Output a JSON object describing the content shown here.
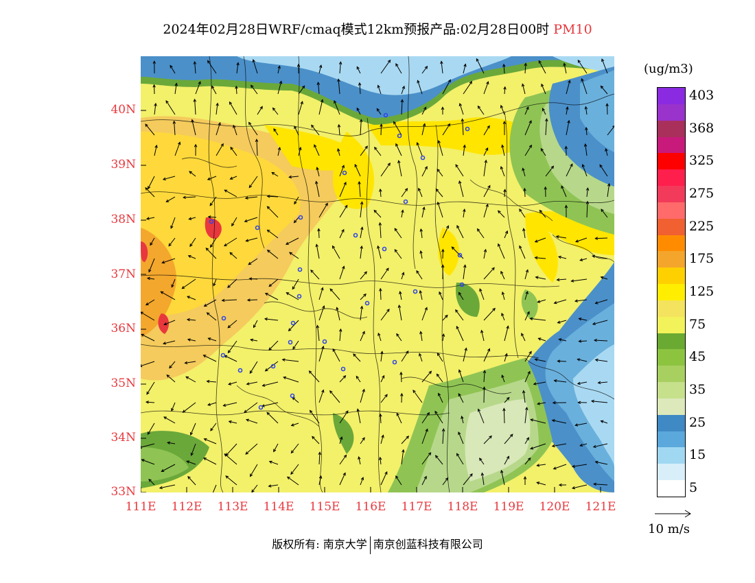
{
  "title": {
    "main": "2024年02月28日WRF/cmaq模式12km预报产品:02月28日00时",
    "pollutant": "PM10"
  },
  "map": {
    "lat_labels": [
      "40N",
      "39N",
      "38N",
      "37N",
      "36N",
      "35N",
      "34N",
      "33N"
    ],
    "lon_labels": [
      "111E",
      "112E",
      "113E",
      "114E",
      "115E",
      "116E",
      "117E",
      "118E",
      "119E",
      "120E",
      "121E"
    ],
    "colors": {
      "yellow_light": "#f3f06a",
      "yellow": "#ffe500",
      "orange_light": "#f4cb5c",
      "orange": "#f3a72d",
      "red": "#e8383d",
      "green_dark": "#6aa83a",
      "green": "#8fc454",
      "green_light": "#b7d88a",
      "green_pale": "#d8e8b8",
      "blue_dark": "#4b90c9",
      "blue": "#6ab0dc",
      "blue_light": "#a9d9f2",
      "station": "#2f46e6"
    }
  },
  "colorbar": {
    "unit": "(ug/m3)",
    "levels": [
      {
        "label": "403",
        "color": "#8a2be2"
      },
      {
        "label": "",
        "color": "#9933cc"
      },
      {
        "label": "368",
        "color": "#a8305b"
      },
      {
        "label": "",
        "color": "#c81a7a"
      },
      {
        "label": "325",
        "color": "#ff0000"
      },
      {
        "label": "",
        "color": "#ff1f4d"
      },
      {
        "label": "275",
        "color": "#f23b5a"
      },
      {
        "label": "",
        "color": "#ff6a6a"
      },
      {
        "label": "225",
        "color": "#f06030"
      },
      {
        "label": "",
        "color": "#ff8c00"
      },
      {
        "label": "175",
        "color": "#f4a52b"
      },
      {
        "label": "",
        "color": "#ffd000"
      },
      {
        "label": "125",
        "color": "#ffee00"
      },
      {
        "label": "",
        "color": "#f4e35e"
      },
      {
        "label": "75",
        "color": "#f2f25a"
      },
      {
        "label": "",
        "color": "#6aaa32"
      },
      {
        "label": "45",
        "color": "#8cc440"
      },
      {
        "label": "",
        "color": "#a8d060"
      },
      {
        "label": "35",
        "color": "#c6e08c"
      },
      {
        "label": "",
        "color": "#dde9bb"
      },
      {
        "label": "25",
        "color": "#3f89c4"
      },
      {
        "label": "",
        "color": "#5aa8dc"
      },
      {
        "label": "15",
        "color": "#a0d8f2"
      },
      {
        "label": "",
        "color": "#d8eef9"
      },
      {
        "label": "5",
        "color": "#ffffff"
      }
    ]
  },
  "wind_reference": {
    "label": "10 m/s"
  },
  "footer": {
    "copyright": "版权所有: 南京大学",
    "company": "南京创蓝科技有限公司"
  }
}
